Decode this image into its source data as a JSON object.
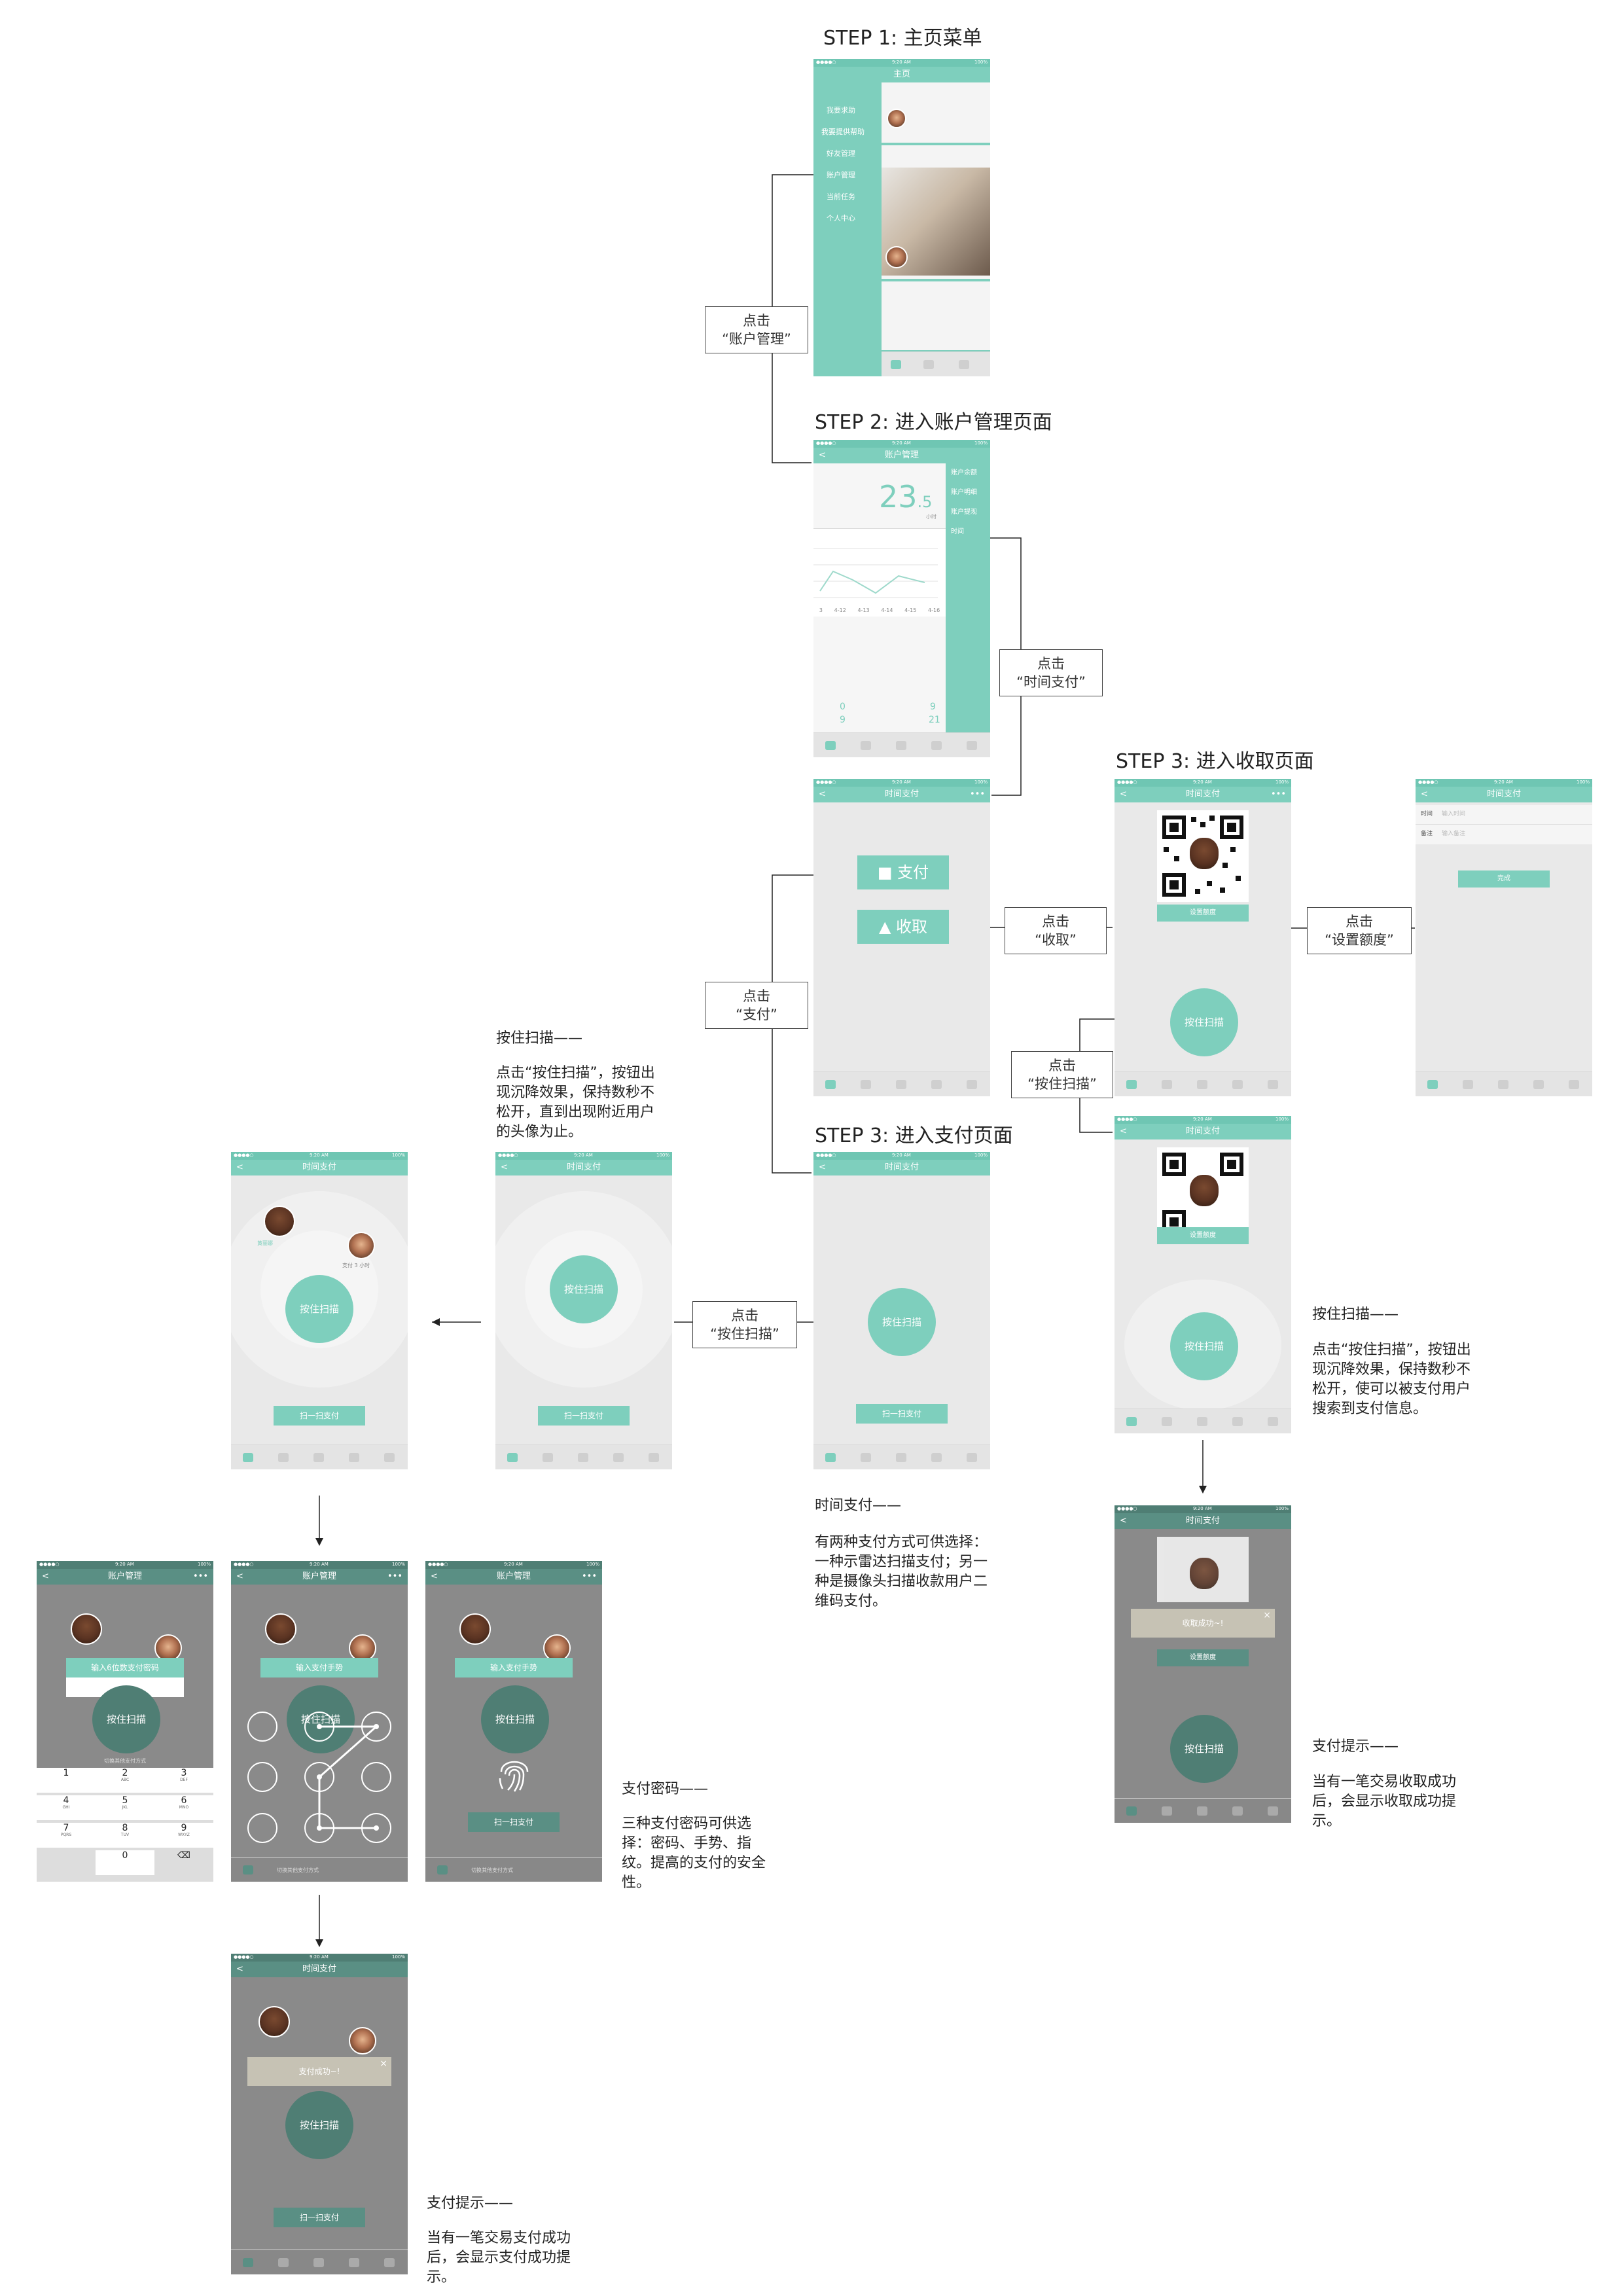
{
  "steps": {
    "s1": "STEP 1: 主页菜单",
    "s2": "STEP 2: 进入账户管理页面",
    "s3a": "STEP 3: 进入收取页面",
    "s3b": "STEP 3: 进入支付页面"
  },
  "callouts": {
    "account": [
      "点击",
      "“账户管理”"
    ],
    "timepay": [
      "点击",
      "“时间支付”"
    ],
    "pay": [
      "点击",
      "“支付”"
    ],
    "receive": [
      "点击",
      "“收取”"
    ],
    "setamount": [
      "点击",
      "“设置额度”"
    ],
    "hold_right": [
      "点击",
      "“按住扫描”"
    ],
    "hold_left": [
      "点击",
      "“按住扫描”"
    ]
  },
  "notes": {
    "hold_left_title": "按住扫描——",
    "hold_left_body": "点击“按住扫描”，按钮出现沉降效果，保持数秒不松开，直到出现附近用户的头像为止。",
    "timepay_title": "时间支付——",
    "timepay_body": "有两种支付方式可供选择：一种示雷达扫描支付；另一种是摄像头扫描收款用户二维码支付。",
    "hold_right_title": "按住扫描——",
    "hold_right_body": "点击“按住扫描”，按钮出现沉降效果，保持数秒不松开，使可以被支付用户搜索到支付信息。",
    "paypwd_title": "支付密码——",
    "paypwd_body": "三种支付密码可供选择：密码、手势、指纹。提高的支付的安全性。",
    "receive_tip_title": "支付提示——",
    "receive_tip_body": "当有一笔交易收取成功后，会显示收取成功提示。",
    "pay_tip_title": "支付提示——",
    "pay_tip_body": "当有一笔交易支付成功后，会显示支付成功提示。"
  },
  "phone": {
    "time": "9:20 AM",
    "battery": "100%",
    "signal": "●●●●○",
    "back": "<",
    "more": "•••",
    "title_home": "主页",
    "title_account": "账户管理",
    "title_timepay": "时间支付",
    "hold": "按住扫描",
    "scan": "扫一扫支付",
    "set_amount": "设置额度",
    "pay_btn": "支付",
    "receive_btn": "收取",
    "menu": [
      "我要求助",
      "我要提供帮助",
      "好友管理",
      "账户管理",
      "当前任务",
      "个人中心"
    ],
    "user_name": "黄丽娜",
    "user_dist": "支付 3 小时",
    "user_name2": "李丽",
    "account_value": "23",
    "account_dec": ".5",
    "account_unit": "小时",
    "account_menu": [
      "账户余额",
      "账户明细",
      "账户提现",
      "时间"
    ],
    "dates": [
      "3",
      "4-12",
      "4-13",
      "4-14",
      "4-15",
      "4-16"
    ],
    "stat1": "0",
    "stat2": "9",
    "stat3": "9",
    "stat4": "21",
    "form_time": "时间",
    "form_time_ph": "输入时间",
    "form_note": "备注",
    "form_note_ph": "输入备注",
    "form_done": "完成",
    "receive_ok": "收取成功~!",
    "pay_ok": "支付成功~!",
    "pwd_prompt": "输入6位数支付密码",
    "gesture_prompt": "输入支付手势",
    "fp_prompt": "输入支付手势",
    "switch_method": "切换其他支付方式",
    "keys": [
      [
        "1",
        ""
      ],
      [
        "2",
        "ABC"
      ],
      [
        "3",
        "DEF"
      ],
      [
        "4",
        "GHI"
      ],
      [
        "5",
        "JKL"
      ],
      [
        "6",
        "MNO"
      ],
      [
        "7",
        "PQRS"
      ],
      [
        "8",
        "TUV"
      ],
      [
        "9",
        "WXYZ"
      ],
      [
        "",
        ""
      ],
      [
        "0",
        ""
      ],
      [
        "⌫",
        ""
      ]
    ]
  }
}
